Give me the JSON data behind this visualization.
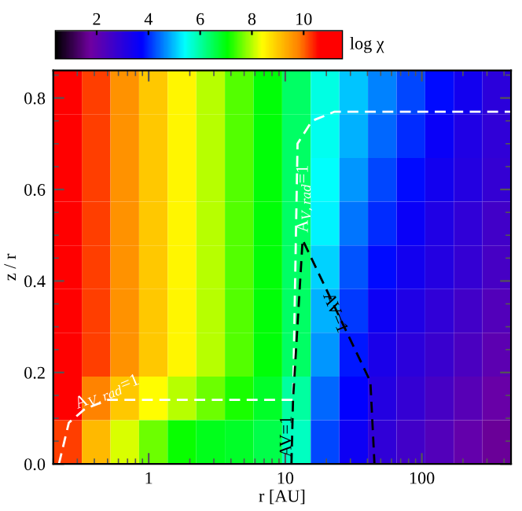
{
  "chart_data": {
    "type": "heatmap",
    "xlabel": "r [AU]",
    "ylabel": "z / r",
    "clabel": "log χ",
    "log": "x",
    "xlim": [
      0.2,
      450
    ],
    "ylim": [
      0,
      0.86
    ],
    "xticks": [
      1,
      10,
      100
    ],
    "yticks": [
      {
        "value": 0,
        "label": "0.0"
      },
      {
        "value": 0.2,
        "label": "0.2"
      },
      {
        "value": 0.4,
        "label": "0.4"
      },
      {
        "value": 0.6,
        "label": "0.6"
      },
      {
        "value": 0.8,
        "label": "0.8"
      }
    ],
    "clim": [
      0.4,
      11.5
    ],
    "cticks": [
      2,
      4,
      6,
      8,
      10
    ],
    "cells": [
      [
        10.8,
        10.2,
        9.6,
        9.0,
        8.5,
        8.0,
        7.5,
        7.0,
        6.4,
        5.6,
        5.0,
        4.6,
        4.2,
        3.8,
        3.4,
        3.0
      ],
      [
        10.8,
        10.2,
        9.6,
        9.0,
        8.5,
        8.0,
        7.5,
        7.0,
        6.4,
        5.5,
        4.9,
        4.4,
        4.0,
        3.6,
        3.2,
        2.9
      ],
      [
        10.8,
        10.2,
        9.6,
        9.0,
        8.5,
        8.0,
        7.5,
        7.0,
        6.4,
        5.4,
        4.7,
        4.2,
        3.8,
        3.4,
        3.1,
        2.8
      ],
      [
        10.8,
        10.2,
        9.6,
        9.0,
        8.5,
        8.0,
        7.5,
        7.0,
        6.4,
        5.3,
        4.5,
        4.0,
        3.6,
        3.2,
        2.9,
        2.6
      ],
      [
        10.8,
        10.2,
        9.6,
        9.0,
        8.5,
        8.0,
        7.5,
        7.0,
        6.4,
        5.1,
        4.3,
        3.8,
        3.4,
        3.1,
        2.8,
        2.5
      ],
      [
        10.8,
        10.2,
        9.6,
        9.0,
        8.5,
        8.0,
        7.5,
        7.0,
        6.4,
        4.9,
        4.1,
        3.5,
        3.2,
        2.9,
        2.6,
        2.3
      ],
      [
        10.8,
        10.2,
        9.6,
        9.0,
        8.5,
        8.0,
        7.5,
        7.0,
        6.4,
        4.7,
        3.9,
        3.3,
        3.0,
        2.7,
        2.4,
        2.1
      ],
      [
        10.6,
        9.8,
        9.0,
        8.4,
        8.0,
        7.6,
        7.2,
        6.8,
        6.0,
        4.4,
        3.7,
        3.1,
        2.8,
        2.5,
        2.2,
        1.9
      ],
      [
        10.2,
        9.2,
        8.2,
        7.6,
        7.1,
        6.9,
        6.8,
        6.6,
        5.8,
        4.2,
        3.5,
        2.9,
        2.6,
        2.3,
        2.0,
        1.7
      ]
    ],
    "series": [
      {
        "type": "line",
        "color": "#ffffff",
        "line_style": "dashed",
        "x": [
          0.22,
          0.26,
          0.34,
          0.5,
          11.4,
          12.3,
          15.7,
          23,
          450
        ],
        "values": [
          0,
          0.09,
          0.12,
          0.14,
          0.14,
          0.7,
          0.75,
          0.77,
          0.77
        ]
      },
      {
        "type": "line",
        "color": "#000000",
        "line_style": "dashed",
        "x": [
          11.1,
          11.4,
          13.4,
          42,
          45
        ],
        "values": [
          0,
          0.14,
          0.49,
          0.18,
          0
        ]
      }
    ],
    "annotations": [
      {
        "text": "A$_{V,rad}$=1",
        "x": 0.5,
        "y": 0.155
      },
      {
        "text": "A$_{V,rad}$=1",
        "x": 13.8,
        "y": 0.58
      },
      {
        "text": "AV=1",
        "x": 10.3,
        "y": 0.06
      },
      {
        "text": "AV=1",
        "x": 23,
        "y": 0.33
      }
    ]
  }
}
